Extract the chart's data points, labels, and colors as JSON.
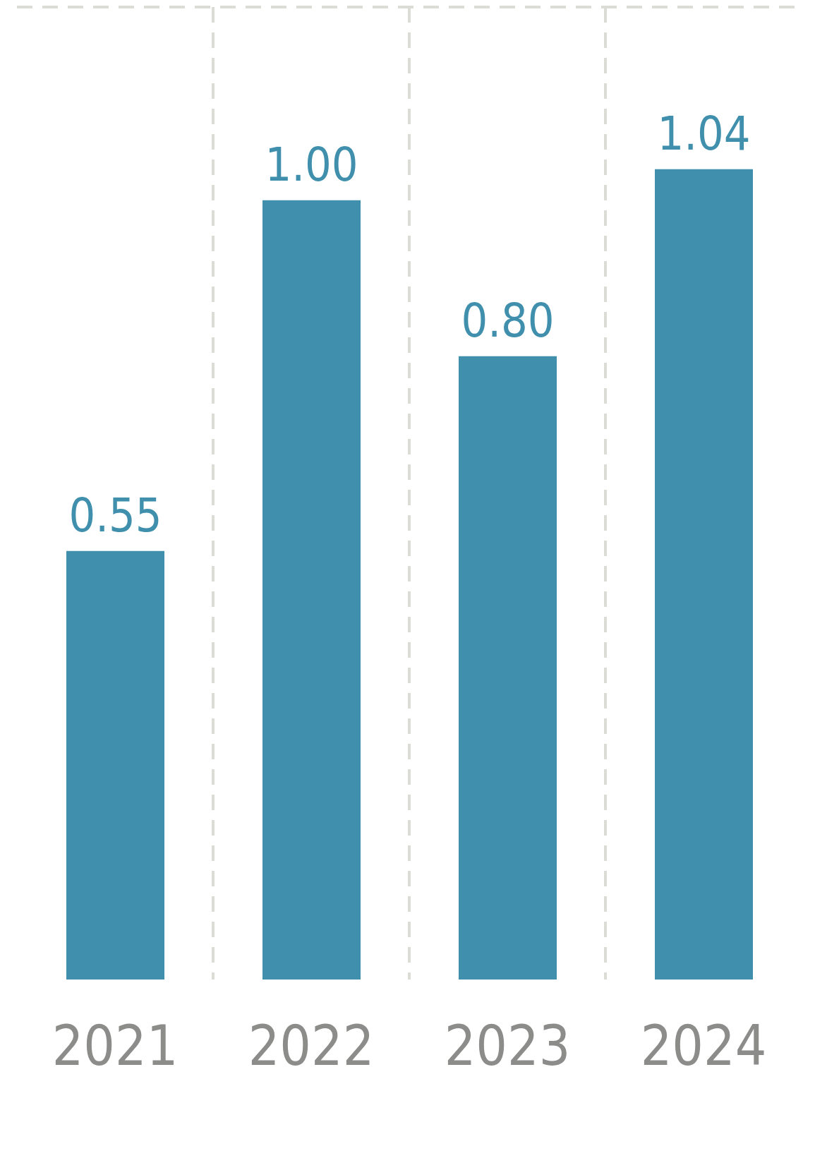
{
  "chart_data": {
    "type": "bar",
    "categories": [
      "2021",
      "2022",
      "2023",
      "2024"
    ],
    "values": [
      0.55,
      1.0,
      0.8,
      1.04
    ],
    "value_labels": [
      "0.55",
      "1.00",
      "0.80",
      "1.04"
    ],
    "color": "#3f8fad",
    "grid": true
  }
}
